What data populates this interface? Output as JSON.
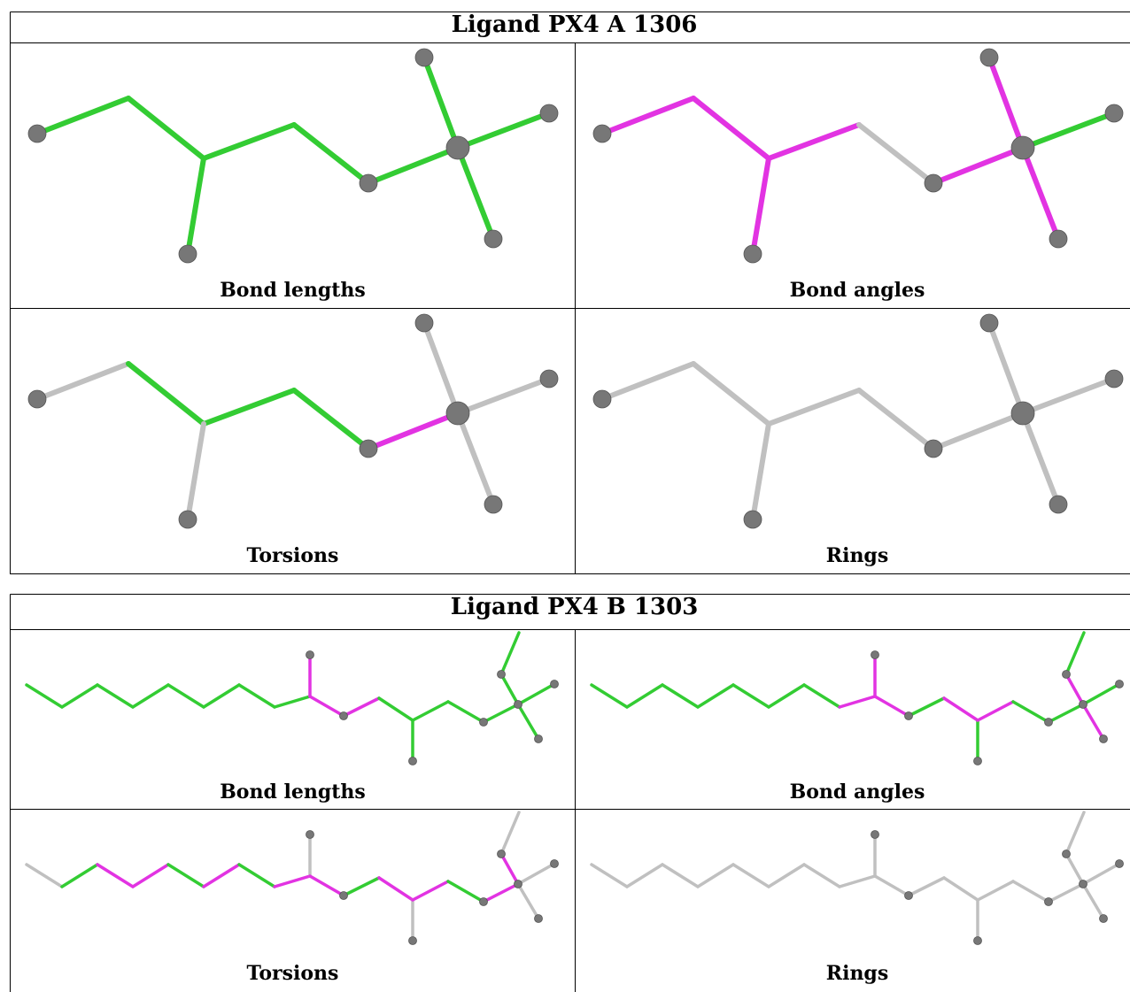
{
  "colors": {
    "green": "#33cc33",
    "magenta": "#e233e2",
    "gray": "#c0c0c0",
    "atom": "#777777",
    "border": "#000000"
  },
  "ligands": [
    {
      "title": "Ligand PX4 A 1306",
      "panels": [
        {
          "caption": "Bond lengths"
        },
        {
          "caption": "Bond angles"
        },
        {
          "caption": "Torsions"
        },
        {
          "caption": "Rings"
        }
      ]
    },
    {
      "title": "Ligand PX4 B 1303",
      "panels": [
        {
          "caption": "Bond lengths"
        },
        {
          "caption": "Bond angles"
        },
        {
          "caption": "Torsions"
        },
        {
          "caption": "Rings"
        }
      ]
    }
  ]
}
